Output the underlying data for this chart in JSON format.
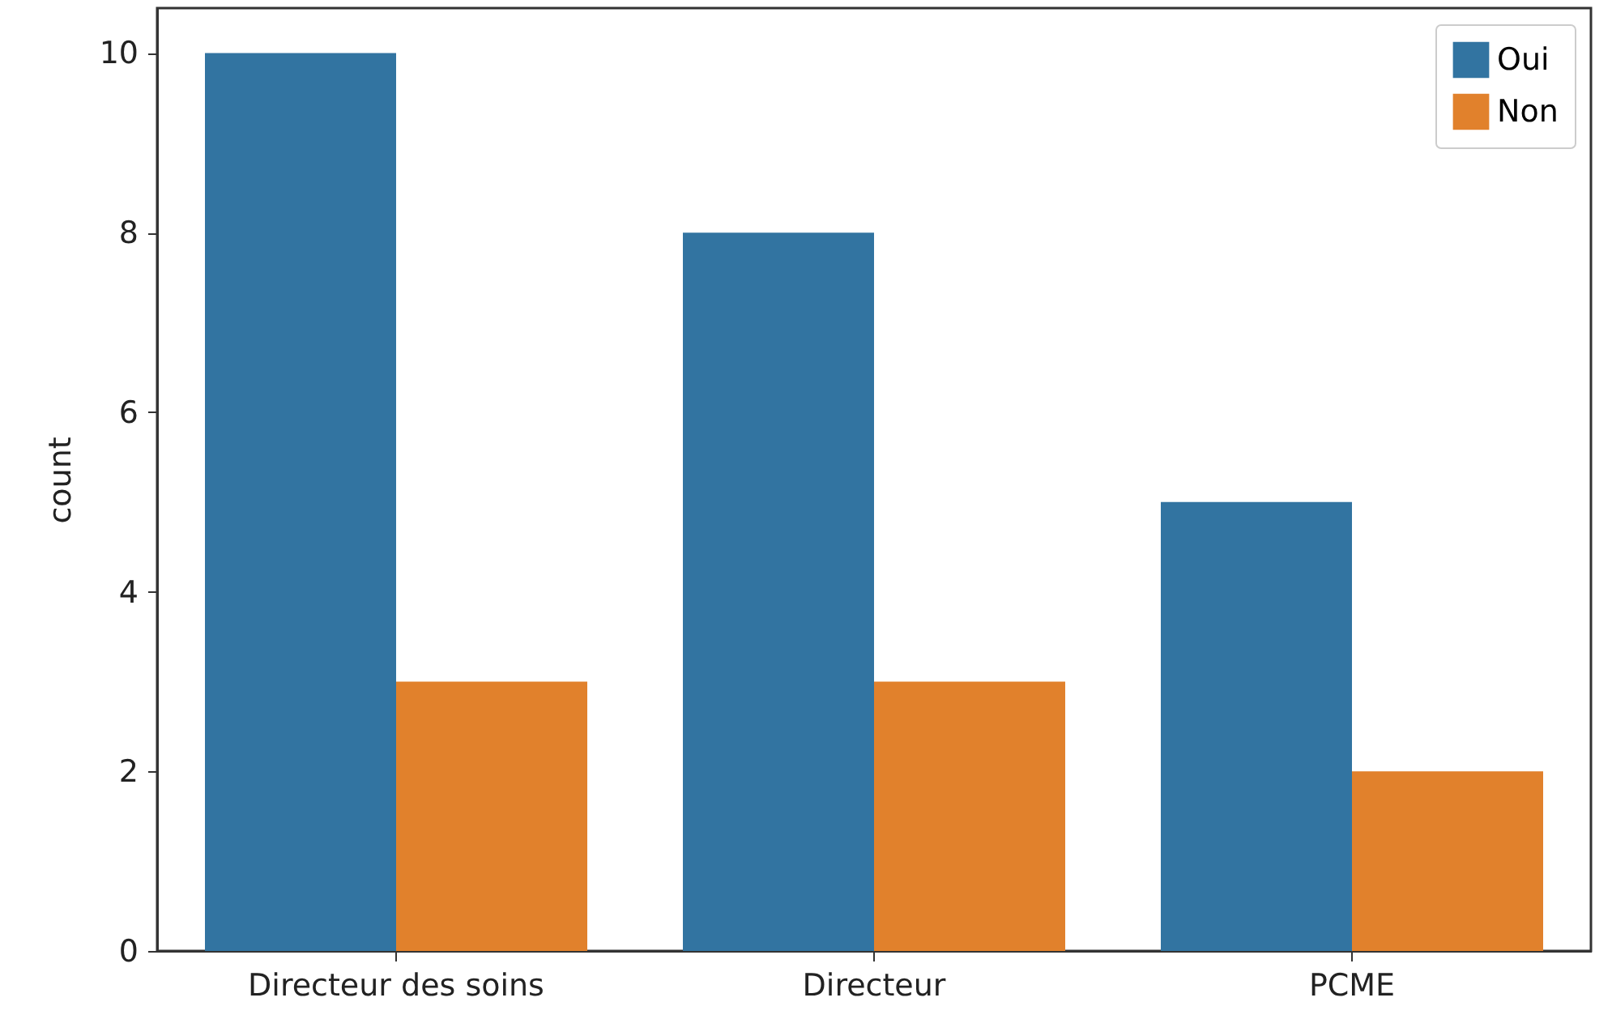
{
  "chart_data": {
    "type": "bar",
    "ylabel": "count",
    "categories": [
      "Directeur des soins",
      "Directeur",
      "PCME"
    ],
    "series": [
      {
        "name": "Oui",
        "color": "#3274a1",
        "values": [
          10,
          8,
          5
        ]
      },
      {
        "name": "Non",
        "color": "#e1812c",
        "values": [
          3,
          3,
          2
        ]
      }
    ],
    "ylim": [
      0,
      10.5
    ],
    "yticks": [
      0,
      2,
      4,
      6,
      8,
      10
    ],
    "grid": false,
    "legend": "top right"
  }
}
